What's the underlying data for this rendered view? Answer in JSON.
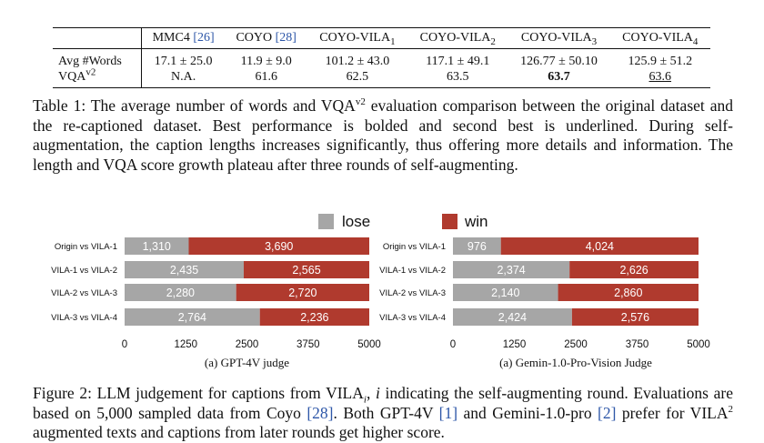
{
  "table": {
    "header": [
      "",
      "MMC4 ",
      "COYO ",
      "COYO-VILA",
      "COYO-VILA",
      "COYO-VILA",
      "COYO-VILA"
    ],
    "header_refs": [
      "",
      "[26]",
      "[28]",
      "",
      "",
      "",
      ""
    ],
    "header_subs": [
      "",
      "",
      "",
      "1",
      "2",
      "3",
      "4"
    ],
    "row1_label": "Avg #Words",
    "row1": [
      "17.1 ± 25.0",
      "11.9 ± 9.0",
      "101.2 ± 43.0",
      "117.1 ± 49.1",
      "126.77 ± 50.10",
      "125.9 ± 51.2"
    ],
    "row2_label_base": "VQA",
    "row2_label_sup": "v2",
    "row2": [
      "N.A.",
      "61.6",
      "62.5",
      "63.5",
      "63.7",
      "63.6"
    ]
  },
  "table_caption": {
    "p1": "Table 1: The average number of words and VQA",
    "sup": "v2",
    "p2": " evaluation comparison between the original dataset and the re-captioned dataset. Best performance is bolded and second best is underlined. During self-augmentation, the caption lengths increases significantly, thus offering more details and information. The length and VQA score growth plateau after three rounds of self-augmenting."
  },
  "chart_data": [
    {
      "type": "bar",
      "orientation": "horizontal-stacked",
      "legend": [
        "lose",
        "win"
      ],
      "colors": {
        "lose": "#a6a6a6",
        "win": "#b03a2e"
      },
      "categories": [
        "Origin vs VILA-1",
        "VILA-1 vs VILA-2",
        "VILA-2 vs VILA-3",
        "VILA-3 vs VILA-4"
      ],
      "series": [
        {
          "name": "lose",
          "values": [
            1310,
            2435,
            2280,
            2764
          ]
        },
        {
          "name": "win",
          "values": [
            3690,
            2565,
            2720,
            2236
          ]
        }
      ],
      "value_labels_lose": [
        "1,310",
        "2,435",
        "2,280",
        "2,764"
      ],
      "value_labels_win": [
        "3,690",
        "2,565",
        "2,720",
        "2,236"
      ],
      "xlim": [
        0,
        5000
      ],
      "xticks": [
        "0",
        "1250",
        "2500",
        "3750",
        "5000"
      ],
      "xtick_values": [
        0,
        1250,
        2500,
        3750,
        5000
      ],
      "caption": "(a) GPT-4V judge"
    },
    {
      "type": "bar",
      "orientation": "horizontal-stacked",
      "legend": [
        "lose",
        "win"
      ],
      "colors": {
        "lose": "#a6a6a6",
        "win": "#b03a2e"
      },
      "categories": [
        "Origin vs VILA-1",
        "VILA-1 vs VILA-2",
        "VILA-2 vs VILA-3",
        "VILA-3 vs VILA-4"
      ],
      "series": [
        {
          "name": "lose",
          "values": [
            976,
            2374,
            2140,
            2424
          ]
        },
        {
          "name": "win",
          "values": [
            4024,
            2626,
            2860,
            2576
          ]
        }
      ],
      "value_labels_lose": [
        "976",
        "2,374",
        "2,140",
        "2,424"
      ],
      "value_labels_win": [
        "4,024",
        "2,626",
        "2,860",
        "2,576"
      ],
      "xlim": [
        0,
        5000
      ],
      "xticks": [
        "0",
        "1250",
        "2500",
        "3750",
        "5000"
      ],
      "xtick_values": [
        0,
        1250,
        2500,
        3750,
        5000
      ],
      "caption": "(a) Gemin-1.0-Pro-Vision Judge"
    }
  ],
  "figure_caption": {
    "p1": "Figure 2: LLM judgement for captions from VILA",
    "sub": "i",
    "p2": ", ",
    "ivar": "i",
    "p3": " indicating the self-augmenting round. Evaluations are based on 5,000 sampled data from Coyo ",
    "ref1": "[28]",
    "p4": ". Both GPT-4V ",
    "ref2": "[1]",
    "p5": " and Gemini-1.0-pro ",
    "ref3": "[2]",
    "p6": " prefer for VILA",
    "sup": "2",
    "p7": " augmented texts and captions from later rounds get higher score."
  }
}
